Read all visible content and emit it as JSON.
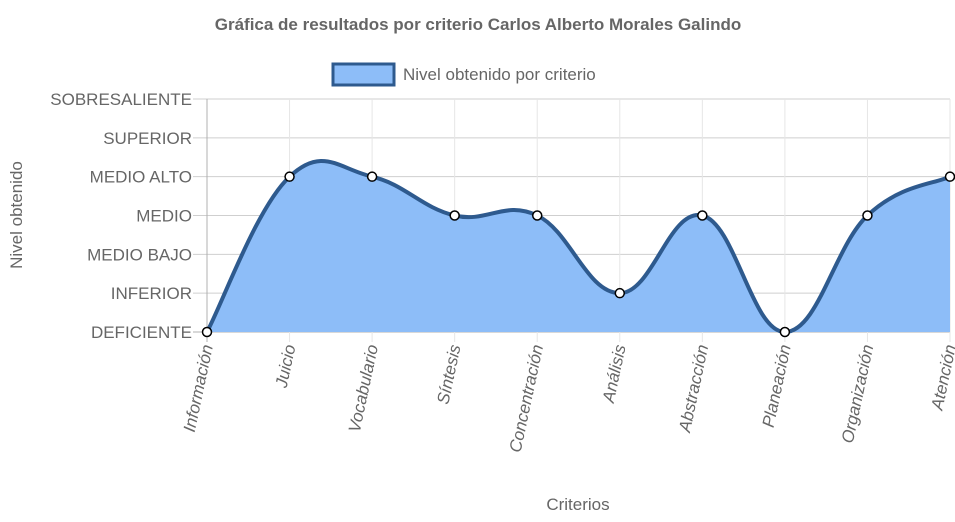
{
  "chart_data": {
    "type": "area",
    "title": "Gráfica de resultados por criterio Carlos Alberto Morales Galindo",
    "xlabel": "Criterios",
    "ylabel": "Nivel obtenido",
    "categories": [
      "Información",
      "Juicio",
      "Vocabulario",
      "Síntesis",
      "Concentración",
      "Análisis",
      "Abstracción",
      "Planeación",
      "Organización",
      "Atención"
    ],
    "y_levels": [
      "DEFICIENTE",
      "INFERIOR",
      "MEDIO BAJO",
      "MEDIO",
      "MEDIO ALTO",
      "SUPERIOR",
      "SOBRESALIENTE"
    ],
    "ylim": [
      0,
      6
    ],
    "series": [
      {
        "name": "Nivel obtenido por criterio",
        "values": [
          0,
          4,
          4,
          3,
          3,
          1,
          3,
          0,
          3,
          4
        ],
        "value_labels": [
          "DEFICIENTE",
          "MEDIO ALTO",
          "MEDIO ALTO",
          "MEDIO",
          "MEDIO",
          "INFERIOR",
          "MEDIO",
          "DEFICIENTE",
          "MEDIO",
          "MEDIO ALTO"
        ],
        "line_color": "#2e5a8e",
        "fill_color": "#8dbdf8"
      }
    ],
    "grid": true,
    "legend_position": "top-center",
    "curve": "smooth"
  }
}
